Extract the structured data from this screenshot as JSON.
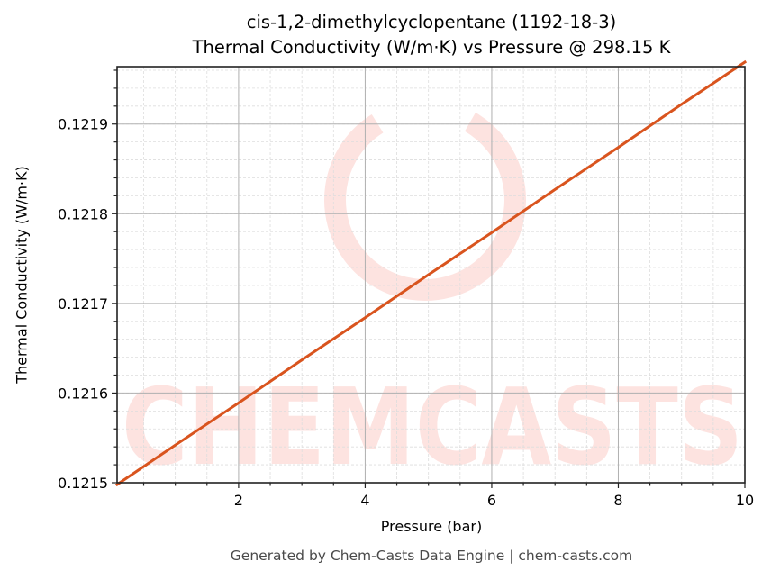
{
  "chart_data": {
    "type": "line",
    "title": "cis-1,2-dimethylcyclopentane (1192-18-3)",
    "subtitle": "Thermal Conductivity (W/m·K) vs Pressure @ 298.15 K",
    "xlabel": "Pressure (bar)",
    "ylabel": "Thermal Conductivity (W/m·K)",
    "xlim": [
      0.08,
      10
    ],
    "ylim": [
      0.1215,
      0.121964
    ],
    "xticks": [
      2,
      4,
      6,
      8,
      10
    ],
    "xtick_labels": [
      "2",
      "4",
      "6",
      "8",
      "10"
    ],
    "yticks": [
      0.1215,
      0.1216,
      0.1217,
      0.1218,
      0.1219
    ],
    "ytick_labels": [
      "0.1215",
      "0.1216",
      "0.1217",
      "0.1218",
      "0.1219"
    ],
    "grid": true,
    "legend": null,
    "series": [
      {
        "name": "Thermal Conductivity",
        "color": "#d9541e",
        "x": [
          0.08,
          1,
          2,
          3,
          4,
          5,
          6,
          7,
          8,
          9,
          10
        ],
        "values": [
          0.121498,
          0.121542,
          0.121589,
          0.121637,
          0.121684,
          0.121732,
          0.121779,
          0.121827,
          0.121874,
          0.121922,
          0.121969
        ]
      }
    ],
    "watermark": "CHEMCASTS"
  },
  "footer": "Generated by Chem-Casts Data Engine | chem-casts.com",
  "colors": {
    "line": "#d9541e",
    "watermark": "#fde3e0",
    "major_grid": "#b0b0b0",
    "minor_grid": "#dddddd",
    "axes": "#222222"
  }
}
